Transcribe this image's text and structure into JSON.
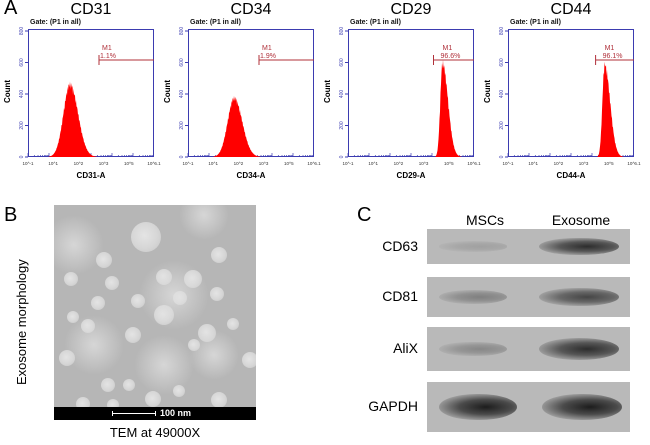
{
  "panels": {
    "A": {
      "letter": "A",
      "gate_text": "Gate: (P1 in all)",
      "y_axis_label": "Count",
      "y_ticks": [
        "0",
        "200",
        "400",
        "600",
        "800"
      ],
      "x_ticks": [
        "10^-1",
        "10^1",
        "10^2",
        "10^3",
        "10^5",
        "10^6.1"
      ],
      "histograms": [
        {
          "title": "CD31",
          "x_label": "CD31-A",
          "marker": "M1",
          "percent": "1.1%"
        },
        {
          "title": "CD34",
          "x_label": "CD34-A",
          "marker": "M1",
          "percent": "1.9%"
        },
        {
          "title": "CD29",
          "x_label": "CD29-A",
          "marker": "M1",
          "percent": "96.6%"
        },
        {
          "title": "CD44",
          "x_label": "CD44-A",
          "marker": "M1",
          "percent": "96.1%"
        }
      ]
    },
    "B": {
      "letter": "B",
      "side_label": "Exosome morphology",
      "scale_bar": "100 nm",
      "caption": "TEM at 49000X"
    },
    "C": {
      "letter": "C",
      "lanes": [
        "MSCs",
        "Exosome"
      ],
      "rows": [
        {
          "label": "CD63",
          "msc_intensity": 0.15,
          "exo_intensity": 0.85
        },
        {
          "label": "CD81",
          "msc_intensity": 0.35,
          "exo_intensity": 0.7
        },
        {
          "label": "AliX",
          "msc_intensity": 0.3,
          "exo_intensity": 0.85
        },
        {
          "label": "GAPDH",
          "msc_intensity": 0.95,
          "exo_intensity": 0.95
        }
      ]
    }
  },
  "colors": {
    "axis": "#3b3bb0",
    "histogram_fill": "#ff0000",
    "marker": "#b0303a"
  },
  "chart_data": [
    {
      "type": "area",
      "title": "CD31",
      "xlabel": "CD31-A",
      "ylabel": "Count",
      "ylim": [
        0,
        800
      ],
      "x_scale": "log",
      "peak_count": 480,
      "peak_position_decade": 2.0,
      "gate": "M1",
      "gate_percent": 1.1
    },
    {
      "type": "area",
      "title": "CD34",
      "xlabel": "CD34-A",
      "ylabel": "Count",
      "ylim": [
        0,
        800
      ],
      "x_scale": "log",
      "peak_count": 390,
      "peak_position_decade": 2.2,
      "gate": "M1",
      "gate_percent": 1.9
    },
    {
      "type": "area",
      "title": "CD29",
      "xlabel": "CD29-A",
      "ylabel": "Count",
      "ylim": [
        0,
        800
      ],
      "x_scale": "log",
      "peak_count": 620,
      "peak_position_decade": 4.5,
      "gate": "M1",
      "gate_percent": 96.6
    },
    {
      "type": "area",
      "title": "CD44",
      "xlabel": "CD44-A",
      "ylabel": "Count",
      "ylim": [
        0,
        800
      ],
      "x_scale": "log",
      "peak_count": 610,
      "peak_position_decade": 4.6,
      "gate": "M1",
      "gate_percent": 96.1
    }
  ]
}
